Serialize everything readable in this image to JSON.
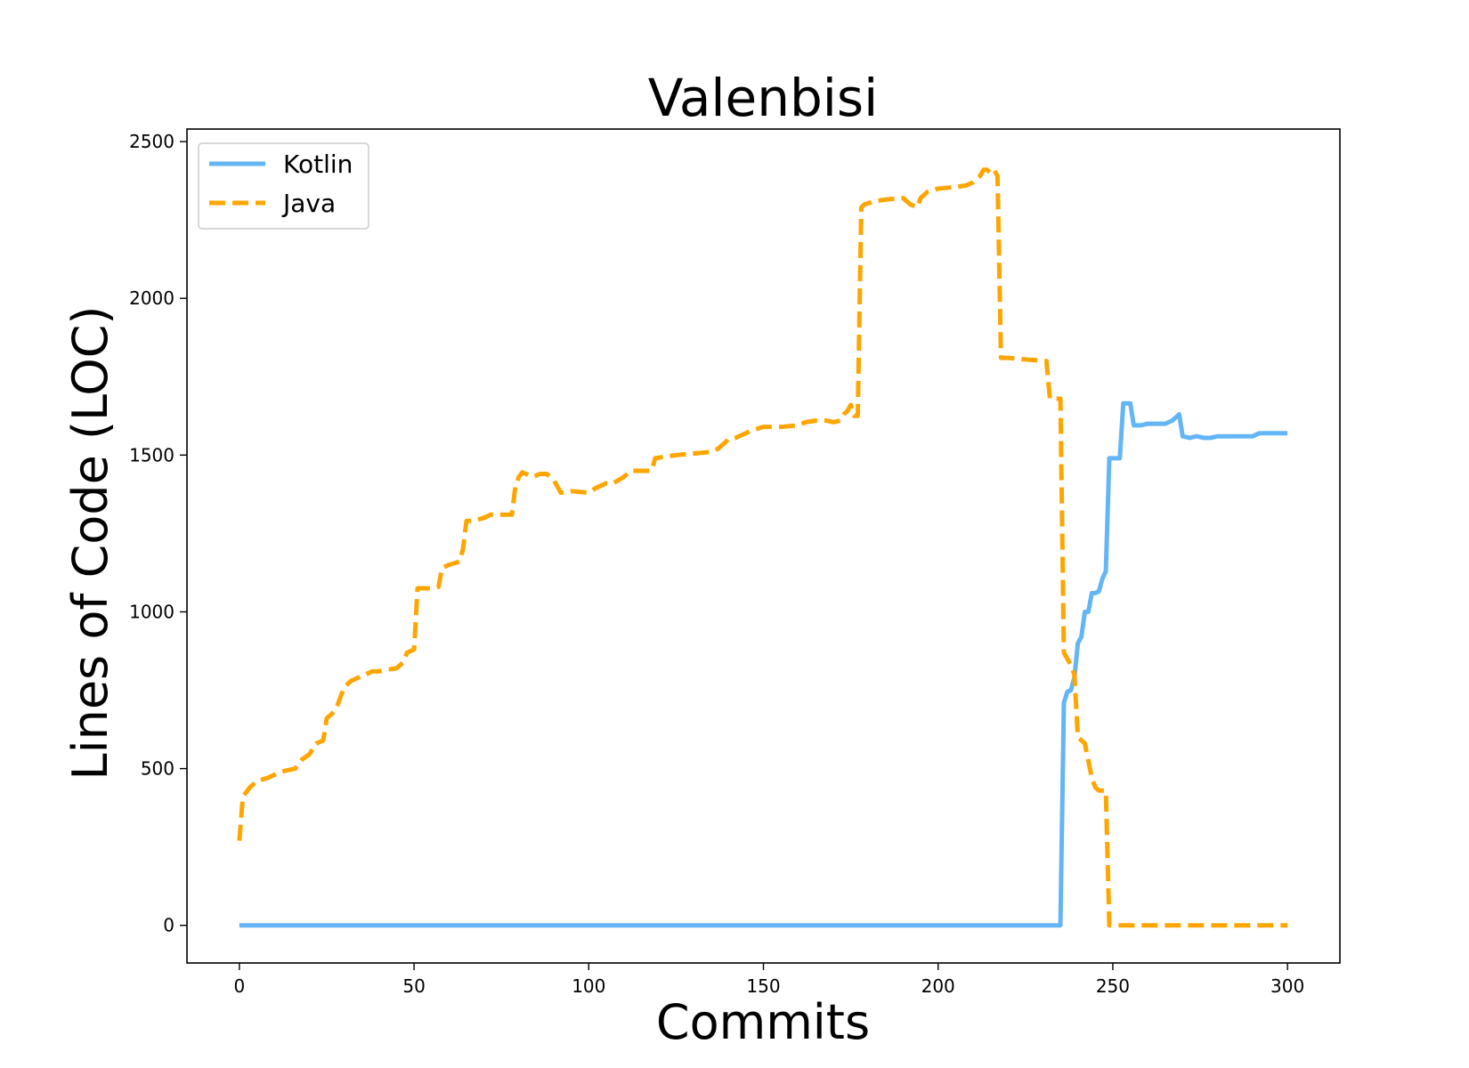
{
  "chart_data": {
    "type": "line",
    "title": "Valenbisi",
    "xlabel": "Commits",
    "ylabel": "Lines of Code (LOC)",
    "xlim": [
      -15,
      315
    ],
    "ylim": [
      -120,
      2540
    ],
    "xticks": [
      0,
      50,
      100,
      150,
      200,
      250,
      300
    ],
    "yticks": [
      0,
      500,
      1000,
      1500,
      2000,
      2500
    ],
    "grid": false,
    "legend_position": "top-left",
    "series": [
      {
        "name": "Kotlin",
        "color": "#64b5f6",
        "style": "solid",
        "x": [
          0,
          100,
          200,
          235,
          236,
          237,
          238,
          239,
          240,
          241,
          242,
          243,
          244,
          245,
          246,
          247,
          248,
          249,
          250,
          252,
          253,
          255,
          256,
          258,
          260,
          265,
          267,
          269,
          270,
          272,
          274,
          276,
          278,
          280,
          285,
          290,
          292,
          295,
          300
        ],
        "y": [
          0,
          0,
          0,
          0,
          710,
          745,
          750,
          790,
          900,
          920,
          1000,
          1000,
          1060,
          1060,
          1065,
          1105,
          1130,
          1490,
          1490,
          1490,
          1665,
          1665,
          1595,
          1595,
          1600,
          1600,
          1610,
          1630,
          1560,
          1555,
          1560,
          1555,
          1555,
          1560,
          1560,
          1560,
          1570,
          1570,
          1570
        ]
      },
      {
        "name": "Java",
        "color": "#ffa500",
        "style": "dashed",
        "x": [
          0,
          1,
          3,
          5,
          8,
          10,
          12,
          14,
          16,
          18,
          20,
          22,
          24,
          25,
          27,
          28,
          30,
          32,
          34,
          36,
          38,
          40,
          42,
          45,
          47,
          48,
          50,
          51,
          52,
          55,
          57,
          58,
          60,
          63,
          64,
          65,
          67,
          70,
          72,
          75,
          78,
          79,
          80,
          81,
          82,
          84,
          86,
          88,
          90,
          92,
          95,
          100,
          102,
          105,
          107,
          110,
          112,
          115,
          118,
          119,
          122,
          125,
          130,
          135,
          137,
          140,
          142,
          145,
          147,
          150,
          155,
          160,
          162,
          165,
          168,
          170,
          172,
          173,
          174,
          175,
          176,
          177,
          178,
          179,
          182,
          185,
          190,
          192,
          194,
          195,
          197,
          200,
          205,
          208,
          210,
          212,
          213,
          214,
          215,
          216,
          217,
          218,
          220,
          225,
          231,
          232,
          235,
          236,
          238,
          239,
          240,
          242,
          244,
          245,
          246,
          247,
          248,
          249,
          250,
          255,
          300
        ],
        "y": [
          270,
          410,
          440,
          460,
          470,
          480,
          490,
          495,
          500,
          530,
          545,
          580,
          590,
          660,
          680,
          700,
          760,
          780,
          790,
          800,
          810,
          810,
          815,
          820,
          840,
          870,
          880,
          1075,
          1075,
          1075,
          1080,
          1140,
          1150,
          1160,
          1200,
          1290,
          1290,
          1300,
          1310,
          1310,
          1310,
          1400,
          1430,
          1445,
          1440,
          1430,
          1440,
          1440,
          1420,
          1380,
          1385,
          1380,
          1395,
          1410,
          1410,
          1430,
          1450,
          1450,
          1450,
          1490,
          1495,
          1500,
          1505,
          1510,
          1520,
          1550,
          1555,
          1570,
          1580,
          1590,
          1590,
          1595,
          1605,
          1610,
          1610,
          1605,
          1610,
          1630,
          1640,
          1660,
          1625,
          1625,
          2290,
          2300,
          2310,
          2315,
          2320,
          2300,
          2290,
          2320,
          2340,
          2350,
          2355,
          2360,
          2370,
          2390,
          2410,
          2410,
          2400,
          2410,
          2390,
          1810,
          1810,
          1805,
          1800,
          1680,
          1680,
          870,
          830,
          800,
          600,
          580,
          470,
          440,
          430,
          430,
          430,
          0,
          0,
          0,
          0
        ]
      }
    ]
  }
}
